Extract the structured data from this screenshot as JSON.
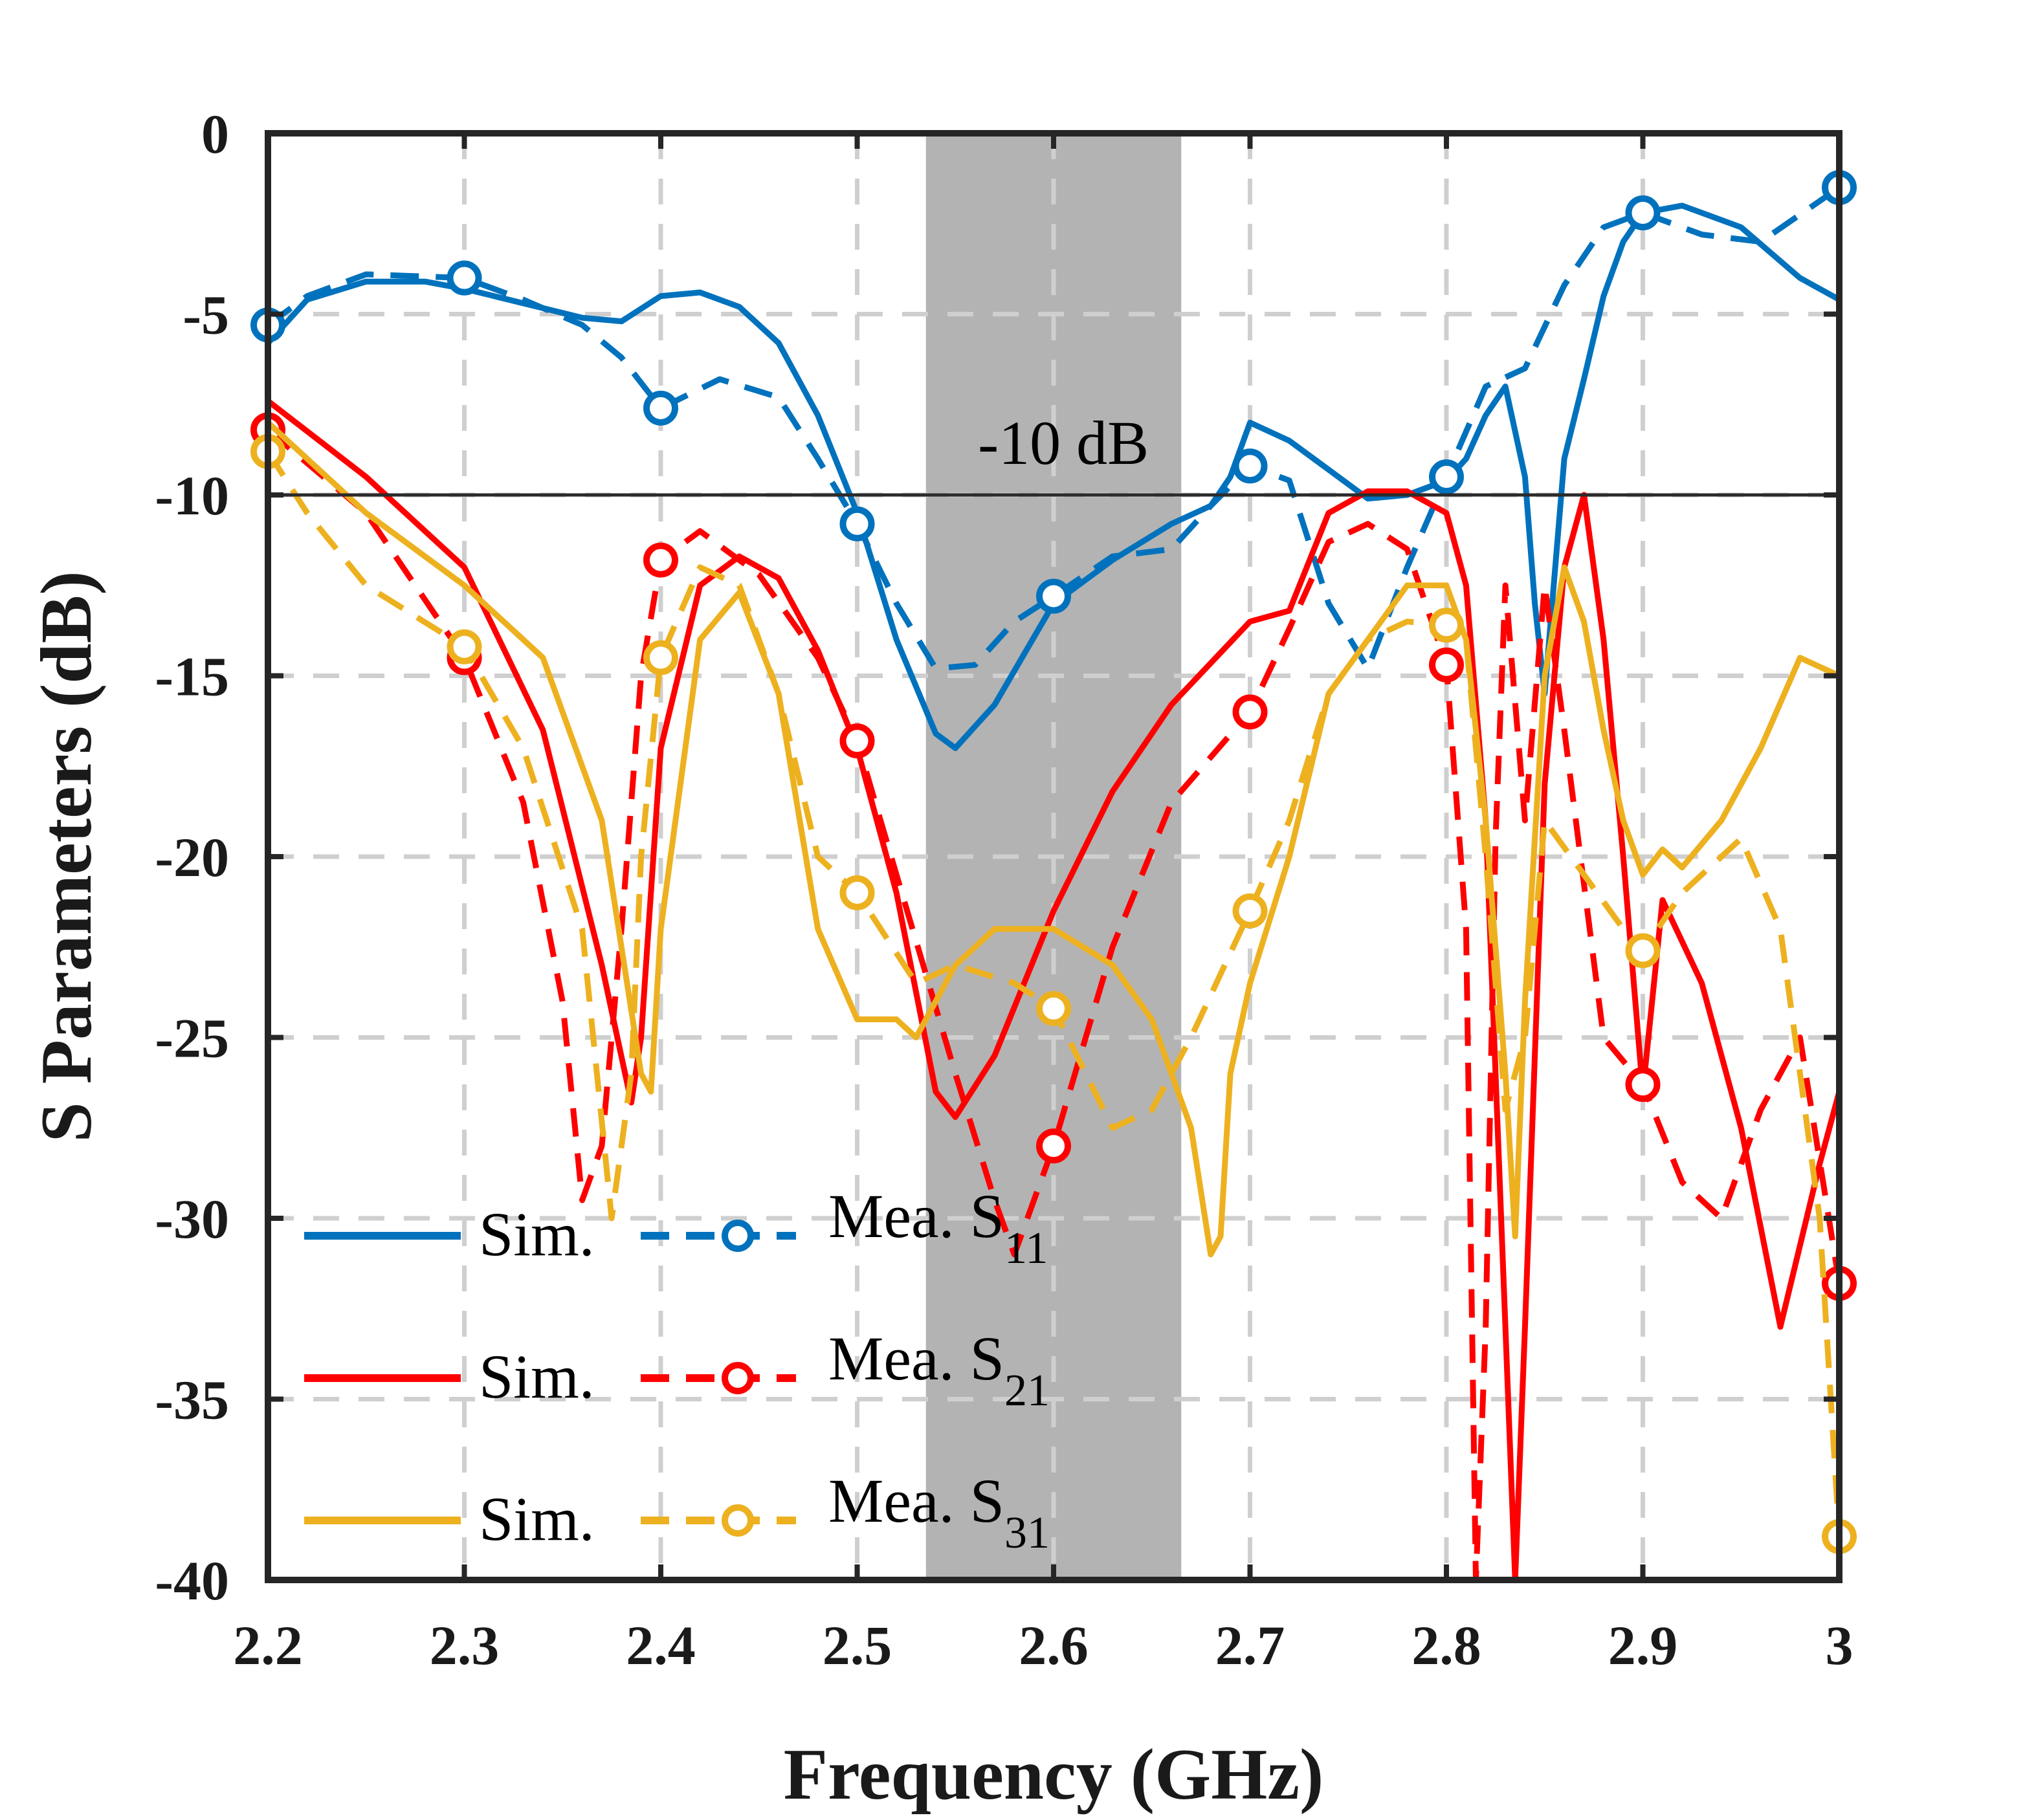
{
  "chart_data": {
    "type": "line",
    "xlabel": "Frequency (GHz)",
    "ylabel": "S Parameters (dB)",
    "xlim": [
      2.2,
      3.0
    ],
    "ylim": [
      -40,
      0
    ],
    "xticks": [
      2.2,
      2.3,
      2.4,
      2.5,
      2.6,
      2.7,
      2.8,
      2.9,
      3.0
    ],
    "xtick_labels": [
      "2.2",
      "2.3",
      "2.4",
      "2.5",
      "2.6",
      "2.7",
      "2.8",
      "2.9",
      "3"
    ],
    "yticks": [
      0,
      -5,
      -10,
      -15,
      -20,
      -25,
      -30,
      -35,
      -40
    ],
    "ytick_labels": [
      "0",
      "-5",
      "-10",
      "-15",
      "-20",
      "-25",
      "-30",
      "-35",
      "-40"
    ],
    "grid": true,
    "reference_line": {
      "y": -10,
      "label": "-10 dB"
    },
    "shaded_band": {
      "x0": 2.535,
      "x1": 2.665
    },
    "legend_position": "bottom-left",
    "colors": {
      "blue": "#0072BD",
      "red": "#FF0000",
      "yellow": "#EDB120",
      "band": "#b3b3b3"
    },
    "legend_labels": {
      "sim": "Sim.",
      "s11_main": "Mea. S",
      "s11_sub": "11",
      "s21_main": "Mea. S",
      "s21_sub": "21",
      "s31_main": "Mea. S",
      "s31_sub": "31"
    },
    "series": [
      {
        "name": "Sim. S11",
        "color": "blue",
        "style": "solid",
        "x": [
          2.2,
          2.22,
          2.25,
          2.28,
          2.3,
          2.33,
          2.36,
          2.38,
          2.4,
          2.42,
          2.44,
          2.46,
          2.48,
          2.5,
          2.52,
          2.54,
          2.55,
          2.57,
          2.6,
          2.63,
          2.66,
          2.68,
          2.69,
          2.7,
          2.72,
          2.74,
          2.76,
          2.78,
          2.8,
          2.81,
          2.82,
          2.83,
          2.84,
          2.845,
          2.85,
          2.86,
          2.87,
          2.88,
          2.89,
          2.9,
          2.92,
          2.95,
          2.98,
          3.0
        ],
        "y": [
          -5.8,
          -4.6,
          -4.1,
          -4.1,
          -4.3,
          -4.7,
          -5.1,
          -5.2,
          -4.5,
          -4.4,
          -4.8,
          -5.8,
          -7.8,
          -10.5,
          -14.0,
          -16.6,
          -17.0,
          -15.8,
          -13.0,
          -11.8,
          -10.8,
          -10.3,
          -9.5,
          -8.0,
          -8.5,
          -9.3,
          -10.1,
          -10.0,
          -9.6,
          -9.0,
          -7.8,
          -7.0,
          -9.5,
          -13.0,
          -15.5,
          -9.0,
          -6.8,
          -4.5,
          -3.0,
          -2.2,
          -2.0,
          -2.6,
          -4.0,
          -4.6
        ]
      },
      {
        "name": "Mea. S11",
        "color": "blue",
        "style": "dashed",
        "x": [
          2.2,
          2.22,
          2.25,
          2.3,
          2.33,
          2.36,
          2.38,
          2.4,
          2.43,
          2.46,
          2.48,
          2.5,
          2.52,
          2.54,
          2.56,
          2.58,
          2.6,
          2.63,
          2.66,
          2.68,
          2.7,
          2.72,
          2.74,
          2.76,
          2.78,
          2.8,
          2.82,
          2.84,
          2.86,
          2.88,
          2.9,
          2.93,
          2.96,
          3.0
        ],
        "y": [
          -5.3,
          -4.5,
          -3.9,
          -4.0,
          -4.6,
          -5.3,
          -6.2,
          -7.6,
          -6.8,
          -7.3,
          -9.0,
          -10.8,
          -13.0,
          -14.8,
          -14.7,
          -13.5,
          -12.8,
          -11.7,
          -11.5,
          -10.3,
          -9.2,
          -9.6,
          -13.0,
          -14.8,
          -12.0,
          -9.5,
          -7.0,
          -6.5,
          -4.2,
          -2.6,
          -2.2,
          -2.8,
          -3.0,
          -1.5
        ]
      },
      {
        "name": "Sim. S21",
        "color": "red",
        "style": "solid",
        "x": [
          2.2,
          2.25,
          2.3,
          2.34,
          2.37,
          2.385,
          2.39,
          2.4,
          2.42,
          2.44,
          2.46,
          2.48,
          2.5,
          2.52,
          2.54,
          2.55,
          2.57,
          2.6,
          2.63,
          2.66,
          2.7,
          2.72,
          2.74,
          2.76,
          2.78,
          2.8,
          2.81,
          2.82,
          2.83,
          2.835,
          2.84,
          2.85,
          2.86,
          2.87,
          2.88,
          2.89,
          2.9,
          2.91,
          2.93,
          2.95,
          2.97,
          2.99,
          3.0
        ],
        "y": [
          -7.4,
          -9.5,
          -12.0,
          -16.5,
          -23.0,
          -26.8,
          -25.0,
          -17.0,
          -12.5,
          -11.7,
          -12.3,
          -14.3,
          -17.0,
          -21.0,
          -26.5,
          -27.2,
          -25.5,
          -21.5,
          -18.2,
          -15.8,
          -13.5,
          -13.2,
          -10.5,
          -9.9,
          -9.9,
          -10.5,
          -12.5,
          -19.0,
          -33.0,
          -40.0,
          -33.0,
          -18.0,
          -12.0,
          -10.0,
          -14.0,
          -20.0,
          -26.5,
          -21.2,
          -23.5,
          -27.5,
          -33.0,
          -28.5,
          -26.5
        ]
      },
      {
        "name": "Mea. S21",
        "color": "red",
        "style": "dashed",
        "x": [
          2.2,
          2.25,
          2.3,
          2.33,
          2.35,
          2.36,
          2.37,
          2.38,
          2.39,
          2.4,
          2.42,
          2.45,
          2.48,
          2.5,
          2.52,
          2.55,
          2.57,
          2.58,
          2.6,
          2.63,
          2.66,
          2.7,
          2.72,
          2.74,
          2.76,
          2.78,
          2.8,
          2.81,
          2.815,
          2.82,
          2.825,
          2.83,
          2.84,
          2.85,
          2.86,
          2.88,
          2.9,
          2.92,
          2.94,
          2.96,
          2.98,
          3.0
        ],
        "y": [
          -8.2,
          -10.5,
          -14.5,
          -18.5,
          -24.0,
          -29.5,
          -28.0,
          -22.0,
          -15.0,
          -11.8,
          -11.0,
          -12.2,
          -14.5,
          -16.8,
          -20.5,
          -26.0,
          -29.5,
          -31.0,
          -28.0,
          -22.5,
          -18.5,
          -16.0,
          -13.7,
          -11.3,
          -10.8,
          -11.5,
          -14.7,
          -22.0,
          -40.0,
          -33.0,
          -19.5,
          -12.5,
          -19.0,
          -12.5,
          -16.5,
          -25.0,
          -26.3,
          -29.0,
          -30.0,
          -27.0,
          -25.0,
          -31.8
        ]
      },
      {
        "name": "Sim. S31",
        "color": "yellow",
        "style": "solid",
        "x": [
          2.2,
          2.25,
          2.3,
          2.34,
          2.37,
          2.39,
          2.395,
          2.4,
          2.42,
          2.44,
          2.46,
          2.48,
          2.5,
          2.52,
          2.53,
          2.55,
          2.57,
          2.6,
          2.63,
          2.65,
          2.67,
          2.68,
          2.685,
          2.69,
          2.7,
          2.72,
          2.74,
          2.76,
          2.78,
          2.8,
          2.81,
          2.82,
          2.83,
          2.835,
          2.84,
          2.85,
          2.86,
          2.87,
          2.88,
          2.89,
          2.9,
          2.91,
          2.92,
          2.94,
          2.96,
          2.98,
          3.0
        ],
        "y": [
          -8.0,
          -10.5,
          -12.5,
          -14.5,
          -19.0,
          -26.0,
          -26.5,
          -22.0,
          -14.0,
          -12.7,
          -15.5,
          -22.0,
          -24.5,
          -24.5,
          -25.0,
          -23.0,
          -22.0,
          -22.0,
          -23.0,
          -24.5,
          -27.5,
          -31.0,
          -30.5,
          -26.0,
          -23.5,
          -20.0,
          -15.5,
          -14.0,
          -12.5,
          -12.5,
          -14.0,
          -19.0,
          -26.0,
          -30.5,
          -24.0,
          -15.0,
          -12.0,
          -13.5,
          -16.5,
          -19.0,
          -20.5,
          -19.8,
          -20.3,
          -19.0,
          -17.0,
          -14.5,
          -15.0
        ]
      },
      {
        "name": "Mea. S31",
        "color": "yellow",
        "style": "dashed",
        "x": [
          2.2,
          2.22,
          2.25,
          2.3,
          2.33,
          2.36,
          2.375,
          2.385,
          2.39,
          2.4,
          2.42,
          2.44,
          2.46,
          2.48,
          2.5,
          2.53,
          2.55,
          2.58,
          2.6,
          2.63,
          2.65,
          2.67,
          2.7,
          2.72,
          2.74,
          2.76,
          2.78,
          2.8,
          2.81,
          2.82,
          2.83,
          2.84,
          2.85,
          2.87,
          2.89,
          2.9,
          2.92,
          2.95,
          2.97,
          2.99,
          3.0
        ],
        "y": [
          -8.8,
          -10.5,
          -12.5,
          -14.2,
          -17.0,
          -22.0,
          -30.0,
          -26.0,
          -20.0,
          -14.5,
          -12.0,
          -12.5,
          -15.5,
          -20.0,
          -21.0,
          -23.5,
          -23.0,
          -23.5,
          -24.2,
          -27.5,
          -27.0,
          -25.0,
          -21.5,
          -19.0,
          -15.5,
          -14.0,
          -13.5,
          -13.6,
          -14.0,
          -20.0,
          -27.0,
          -25.0,
          -19.0,
          -20.5,
          -22.0,
          -22.6,
          -21.0,
          -19.5,
          -22.0,
          -30.0,
          -38.8
        ]
      }
    ]
  }
}
